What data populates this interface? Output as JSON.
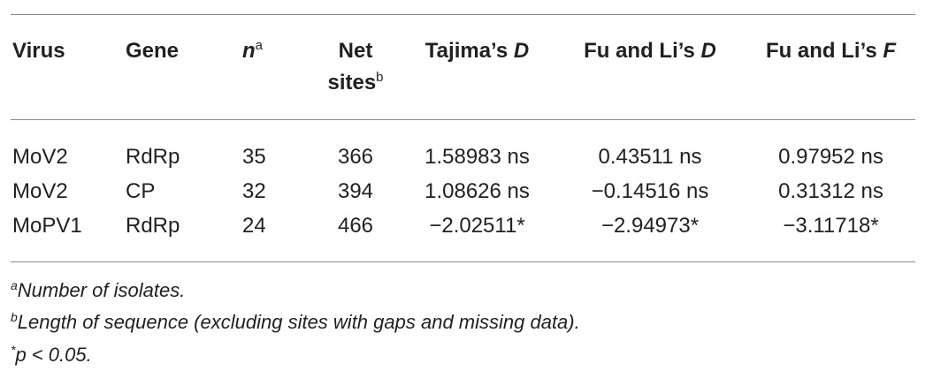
{
  "table": {
    "headers": {
      "virus": "Virus",
      "gene": "Gene",
      "n": "n",
      "n_sup": "a",
      "net_sites_line1": "Net",
      "net_sites_line2": "sites",
      "net_sites_sup": "b",
      "tajima_prefix": "Tajima’s ",
      "tajima_var": "D",
      "fuli_d_prefix": "Fu and Li’s ",
      "fuli_d_var": "D",
      "fuli_f_prefix": "Fu and Li’s ",
      "fuli_f_var": "F"
    },
    "rows": [
      {
        "virus": "MoV2",
        "gene": "RdRp",
        "n": "35",
        "net_sites": "366",
        "tajima_d": "1.58983 ns",
        "fu_li_d": "0.43511 ns",
        "fu_li_f": "0.97952 ns"
      },
      {
        "virus": "MoV2",
        "gene": "CP",
        "n": "32",
        "net_sites": "394",
        "tajima_d": "1.08626 ns",
        "fu_li_d": "−0.14516 ns",
        "fu_li_f": "0.31312 ns"
      },
      {
        "virus": "MoPV1",
        "gene": "RdRp",
        "n": "24",
        "net_sites": "466",
        "tajima_d": "−2.02511*",
        "fu_li_d": "−2.94973*",
        "fu_li_f": "−3.11718*"
      }
    ]
  },
  "footnotes": {
    "a_mark": "a",
    "a_text": "Number of isolates.",
    "b_mark": "b",
    "b_text": "Length of sequence (excluding sites with gaps and missing data).",
    "c_mark": "*",
    "c_text": "p < 0.05."
  }
}
